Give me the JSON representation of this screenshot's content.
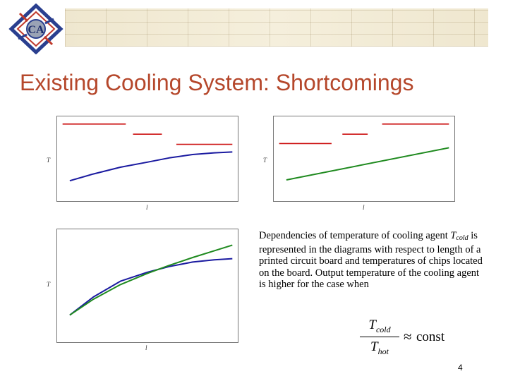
{
  "slide": {
    "logo_text": "CA",
    "title": "Existing Cooling System: Shortcomings",
    "description_before": "Dependencies of temperature of cooling agent ",
    "description_var": "T",
    "description_sub": "cold",
    "description_after": " is represented in the diagrams with respect to length of a printed circuit board and temperatures of chips located on the board. Output temperature of the cooling agent is higher for the case when",
    "formula": {
      "numerator_symbol": "T",
      "numerator_sub": "cold",
      "denominator_symbol": "T",
      "denominator_sub": "hot",
      "operator": "≈",
      "rhs": "const"
    },
    "page_number": "4"
  },
  "colors": {
    "title": "#b5472b",
    "chip_temperature": "#cc1111",
    "series_blue": "#1a1aa0",
    "series_green": "#1f8a1f",
    "logo_red": "#c0392b",
    "logo_blue": "#2a3f8f"
  },
  "chart_data": [
    {
      "type": "line",
      "xlabel": "l",
      "ylabel": "T",
      "xlim": [
        0,
        1
      ],
      "ylim": [
        0,
        1
      ],
      "segments": [
        {
          "x": [
            0.03,
            0.38
          ],
          "y": [
            0.91,
            0.91
          ]
        },
        {
          "x": [
            0.42,
            0.58
          ],
          "y": [
            0.79,
            0.79
          ]
        },
        {
          "x": [
            0.66,
            0.97
          ],
          "y": [
            0.67,
            0.67
          ]
        }
      ],
      "series": [
        {
          "x": [
            0.07,
            0.2,
            0.35,
            0.5,
            0.62,
            0.75,
            0.87,
            0.97
          ],
          "y": [
            0.24,
            0.32,
            0.4,
            0.46,
            0.51,
            0.55,
            0.57,
            0.58
          ]
        }
      ]
    },
    {
      "type": "line",
      "xlabel": "l",
      "ylabel": "T",
      "xlim": [
        0,
        1
      ],
      "ylim": [
        0,
        1
      ],
      "segments": [
        {
          "x": [
            0.03,
            0.32
          ],
          "y": [
            0.68,
            0.68
          ]
        },
        {
          "x": [
            0.38,
            0.52
          ],
          "y": [
            0.79,
            0.79
          ]
        },
        {
          "x": [
            0.6,
            0.97
          ],
          "y": [
            0.91,
            0.91
          ]
        }
      ],
      "series": [
        {
          "x": [
            0.07,
            0.97
          ],
          "y": [
            0.25,
            0.63
          ]
        }
      ]
    },
    {
      "type": "line",
      "xlabel": "l",
      "ylabel": "T",
      "xlim": [
        0,
        1
      ],
      "ylim": [
        0,
        1
      ],
      "series": [
        {
          "x": [
            0.07,
            0.2,
            0.35,
            0.5,
            0.62,
            0.75,
            0.87,
            0.97
          ],
          "y": [
            0.24,
            0.4,
            0.54,
            0.62,
            0.67,
            0.71,
            0.73,
            0.74
          ]
        },
        {
          "x": [
            0.07,
            0.2,
            0.35,
            0.5,
            0.62,
            0.75,
            0.87,
            0.97
          ],
          "y": [
            0.24,
            0.38,
            0.51,
            0.61,
            0.68,
            0.75,
            0.81,
            0.86
          ]
        }
      ]
    }
  ]
}
